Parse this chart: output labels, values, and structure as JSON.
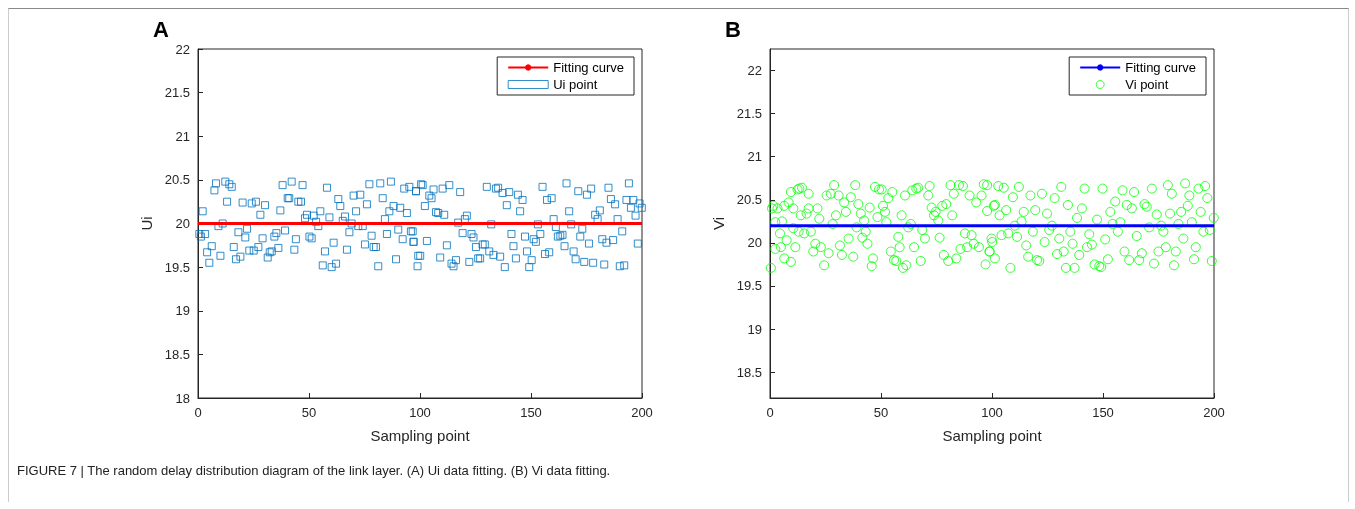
{
  "chart_data": [
    {
      "type": "scatter",
      "title": "A",
      "xlabel": "Sampling point",
      "ylabel": "Ui",
      "xlim": [
        0,
        200
      ],
      "xticks": [
        0,
        50,
        100,
        150,
        200
      ],
      "ylim": [
        18,
        22
      ],
      "yticks": [
        18,
        18.5,
        19,
        19.5,
        20,
        20.5,
        21,
        21.5,
        22
      ],
      "grid": false,
      "legend": "top right",
      "annotations": [
        "FIGURE 7 | The random delay distribution diagram of the link layer. (A) Ui data fitting. (B) Vi data fitting."
      ],
      "series": [
        {
          "type": "line",
          "name": "Fitting curve",
          "color": "#ff0000",
          "marker": "none",
          "x": [
            0,
            200
          ],
          "values": [
            20,
            20
          ]
        },
        {
          "name": "Ui point",
          "color": "#0072bd",
          "marker": "square",
          "x": [
            2.1,
            0.6,
            1.3,
            3.2,
            4.1,
            5.1,
            6.2,
            7.4,
            8.1,
            9.2,
            11.1,
            10.1,
            12.3,
            14.1,
            15.2,
            13.1,
            16.1,
            17.1,
            18.2,
            19.1,
            20.1,
            21.3,
            22.1,
            24.2,
            23.1,
            25.1,
            26.1,
            27.2,
            28.1,
            29.1,
            30.2,
            31.4,
            32.3,
            33.2,
            34.4,
            35.3,
            36.2,
            37.1,
            38.1,
            39.2,
            40.4,
            41.1,
            42.2,
            43.4,
            44.1,
            45.2,
            46.4,
            47.1,
            48.2,
            49.1,
            50.2,
            51.2,
            52.1,
            53.2,
            54.2,
            55.1,
            56.2,
            57.2,
            58.1,
            59.2,
            60.2,
            61.1,
            62.2,
            63.2,
            64.1,
            65.2,
            66.2,
            67.1,
            68.2,
            69.2,
            70.1,
            71.2,
            72.2,
            73.1,
            74.2,
            75.2,
            76.1,
            77.2,
            78.2,
            79.1,
            80.2,
            81.2,
            82.1,
            83.2,
            84.2,
            85.1,
            86.2,
            86.9,
            88.1,
            89.2,
            90.2,
            91.1,
            92.2,
            92.9,
            94.1,
            95.2,
            95.9,
            97.1,
            98.2,
            99.2,
            100.5,
            96.7,
            97.1,
            98.2,
            98.9,
            100.1,
            101.2,
            102.2,
            103.1,
            104.2,
            105.2,
            106.1,
            107.2,
            108.2,
            109.1,
            110.2,
            110.9,
            112.1,
            113.2,
            114.2,
            115.1,
            116.2,
            117.2,
            118.1,
            119.2,
            120.2,
            121.1,
            122.2,
            123.2,
            124.1,
            125.2,
            126.2,
            127.1,
            128.2,
            129.2,
            130.1,
            131.2,
            132.1,
            133.1,
            134.2,
            135.2,
            136.1,
            137.2,
            138.2,
            139.1,
            140.2,
            141.2,
            142.1,
            143.2,
            144.1,
            145.1,
            146.2,
            147.3,
            148.2,
            149.2,
            150.3,
            151.2,
            152.2,
            153.1,
            154.2,
            155.2,
            156.3,
            157.2,
            158.2,
            159.3,
            160.2,
            161.2,
            162.1,
            163.2,
            164.2,
            165.1,
            166.0,
            167.2,
            168.1,
            169.2,
            170.1,
            171.3,
            172.2,
            173.1,
            174.0,
            175.2,
            176.1,
            177.1,
            178.0,
            178.9,
            180.0,
            181.0,
            182.1,
            183.0,
            184.0,
            184.9,
            186.0,
            187.0,
            187.9,
            189.0,
            190.0,
            191.1,
            192.0,
            193.0,
            194.1,
            195.0,
            196.1,
            197.1,
            198.1,
            198.9,
            199.9
          ],
          "values": [
            20.14,
            19.88,
            19.85,
            19.88,
            19.67,
            19.55,
            19.74,
            20.38,
            20.46,
            19.97,
            20.0,
            19.63,
            20.48,
            20.45,
            20.42,
            20.25,
            19.73,
            19.59,
            19.9,
            19.62,
            20.24,
            19.84,
            19.94,
            20.23,
            19.69,
            19.69,
            20.25,
            19.73,
            20.1,
            19.83,
            20.21,
            19.61,
            19.67,
            19.68,
            19.85,
            19.89,
            19.72,
            20.15,
            20.44,
            19.92,
            20.29,
            20.29,
            20.48,
            19.7,
            19.82,
            20.25,
            20.25,
            20.44,
            20.06,
            20.1,
            19.85,
            19.83,
            20.09,
            20.02,
            19.97,
            20.14,
            19.52,
            19.68,
            20.41,
            20.07,
            19.5,
            19.78,
            19.54,
            20.28,
            20.2,
            20.03,
            20.08,
            19.7,
            19.9,
            20.0,
            20.32,
            20.14,
            19.97,
            20.33,
            19.97,
            19.76,
            20.22,
            20.45,
            19.86,
            19.73,
            19.73,
            19.51,
            20.46,
            20.29,
            20.05,
            19.88,
            20.14,
            20.48,
            20.2,
            19.59,
            19.93,
            20.18,
            19.82,
            20.4,
            20.12,
            20.42,
            19.91,
            19.79,
            20.37,
            19.63,
            20.45,
            19.91,
            19.79,
            20.37,
            19.51,
            19.63,
            20.44,
            20.2,
            19.8,
            20.32,
            20.29,
            20.39,
            20.13,
            20.12,
            19.61,
            20.4,
            20.1,
            19.75,
            20.44,
            19.54,
            19.51,
            19.58,
            20.01,
            20.36,
            19.89,
            20.05,
            20.09,
            19.56,
            19.88,
            19.84,
            19.73,
            19.6,
            19.6,
            19.76,
            19.76,
            20.42,
            19.68,
            19.99,
            19.64,
            20.4,
            20.41,
            19.62,
            20.35,
            19.5,
            20.21,
            20.36,
            19.88,
            19.74,
            19.6,
            20.33,
            20.14,
            20.27,
            19.85,
            19.68,
            19.5,
            19.58,
            19.82,
            19.79,
            19.99,
            19.88,
            20.42,
            19.65,
            20.27,
            19.67,
            20.29,
            20.05,
            19.96,
            19.85,
            19.86,
            19.87,
            19.74,
            20.46,
            20.14,
            19.99,
            19.68,
            19.59,
            20.37,
            19.85,
            19.94,
            19.56,
            20.33,
            19.77,
            20.4,
            19.55,
            20.1,
            20.05,
            20.15,
            19.82,
            19.53,
            19.78,
            20.41,
            20.28,
            19.81,
            20.22,
            20.05,
            19.51,
            19.91,
            19.52,
            20.27,
            20.46,
            20.18,
            20.27,
            20.09,
            19.77,
            20.23,
            20.18
          ]
        }
      ]
    },
    {
      "type": "scatter",
      "title": "B",
      "xlabel": "Sampling point",
      "ylabel": "Vi",
      "xlim": [
        0,
        200
      ],
      "xticks": [
        0,
        50,
        100,
        150,
        200
      ],
      "ylim": [
        18.2,
        22.25
      ],
      "yticks": [
        18.5,
        19,
        19.5,
        20,
        20.5,
        21,
        21.5,
        22
      ],
      "grid": false,
      "legend": "top right",
      "series": [
        {
          "type": "line",
          "name": "Fitting curve",
          "color": "#0000ff",
          "marker": "none",
          "x": [
            0,
            200
          ],
          "values": [
            20.2,
            20.2
          ]
        },
        {
          "name": "Vi point",
          "color": "#00ff00",
          "marker": "circle",
          "x": [
            0.4,
            0.9,
            1.5,
            2.4,
            3.4,
            4.5,
            5.4,
            6.4,
            7.5,
            8.4,
            9.4,
            10.5,
            2.4,
            4.9,
            6.4,
            9.4,
            11.4,
            12.4,
            13.2,
            14.4,
            17.4,
            10.5,
            12.9,
            13.9,
            15.4,
            16.5,
            17.4,
            18.4,
            19.5,
            20.4,
            21.4,
            22.2,
            22.9,
            24.4,
            25.5,
            26.4,
            27.4,
            28.2,
            28.9,
            29.7,
            30.9,
            31.5,
            32.4,
            33.4,
            34.2,
            35.4,
            36.4,
            37.5,
            38.4,
            39.0,
            39.8,
            40.9,
            41.6,
            42.4,
            43.1,
            43.9,
            44.9,
            45.8,
            46.4,
            47.3,
            48.4,
            49.1,
            50.3,
            50.9,
            51.8,
            52.4,
            53.3,
            54.4,
            55.1,
            55.9,
            56.9,
            57.8,
            58.4,
            59.3,
            59.9,
            60.8,
            61.4,
            62.3,
            63.4,
            64.1,
            64.9,
            65.9,
            66.8,
            67.9,
            68.6,
            69.8,
            71.3,
            71.9,
            72.8,
            73.9,
            74.6,
            75.8,
            76.4,
            77.6,
            78.3,
            79.4,
            80.3,
            81.3,
            82.1,
            82.8,
            83.9,
            85.1,
            85.8,
            86.9,
            87.8,
            88.8,
            89.9,
            90.8,
            91.8,
            92.9,
            94.1,
            95.3,
            96.3,
            97.1,
            97.8,
            98.9,
            99.8,
            100.8,
            101.3,
            97.8,
            98.9,
            100.1,
            101.3,
            102.8,
            103.4,
            104.3,
            105.3,
            106.4,
            107.3,
            108.3,
            109.4,
            110.3,
            111.3,
            112.1,
            113.3,
            114.3,
            115.4,
            116.3,
            117.3,
            118.4,
            119.5,
            120.3,
            121.3,
            122.5,
            123.7,
            124.8,
            125.8,
            127.0,
            128.2,
            129.3,
            130.3,
            131.2,
            132.3,
            133.3,
            134.2,
            135.3,
            136.3,
            137.2,
            138.3,
            139.3,
            140.5,
            141.7,
            142.8,
            143.8,
            145.0,
            146.2,
            147.3,
            148.3,
            149.2,
            149.8,
            151.0,
            152.2,
            153.3,
            154.3,
            155.5,
            156.7,
            157.8,
            158.8,
            159.7,
            160.7,
            161.8,
            163.0,
            164.0,
            165.2,
            166.3,
            167.5,
            168.7,
            169.7,
            170.8,
            172.0,
            173.0,
            174.2,
            175.0,
            176.2,
            177.2,
            178.3,
            179.2,
            180.2,
            181.0,
            182.0,
            182.8,
            184.0,
            185.2,
            186.2,
            187.0,
            188.2,
            188.9,
            190.0,
            191.0,
            191.8,
            193.0,
            194.0,
            195.2,
            196.0,
            197.0,
            198.1,
            199.0,
            199.9
          ],
          "values": [
            19.71,
            20.4,
            20.43,
            20.24,
            20.4,
            20.11,
            20.25,
            20.43,
            20.03,
            20.47,
            20.59,
            20.4,
            19.93,
            19.95,
            19.82,
            19.78,
            19.95,
            20.62,
            20.63,
            20.64,
            20.57,
            20.17,
            20.13,
            20.32,
            20.11,
            20.34,
            20.4,
            20.13,
            19.9,
            19.99,
            20.4,
            20.28,
            19.95,
            19.74,
            20.55,
            19.88,
            20.57,
            20.22,
            20.67,
            20.32,
            20.55,
            19.97,
            19.86,
            20.47,
            20.36,
            20.05,
            20.53,
            19.84,
            20.67,
            20.18,
            20.45,
            20.34,
            20.06,
            20.26,
            20.13,
            19.99,
            20.41,
            19.73,
            19.82,
            20.65,
            20.3,
            20.62,
            20.62,
            20.43,
            20.36,
            20.24,
            20.52,
            19.9,
            20.59,
            19.8,
            19.79,
            20.07,
            19.95,
            20.32,
            19.71,
            20.55,
            19.74,
            20.18,
            20.22,
            20.61,
            19.95,
            20.63,
            20.64,
            19.79,
            20.15,
            20.05,
            20.55,
            20.66,
            20.41,
            20.32,
            20.36,
            20.26,
            20.06,
            20.43,
            19.86,
            20.45,
            19.79,
            20.67,
            20.32,
            20.57,
            19.82,
            20.67,
            19.93,
            20.66,
            20.11,
            19.95,
            20.55,
            20.09,
            19.99,
            20.47,
            19.95,
            20.55,
            20.68,
            19.75,
            20.37,
            19.9,
            20.05,
            20.43,
            19.82,
            20.67,
            19.9,
            20.01,
            20.44,
            20.66,
            20.32,
            20.09,
            20.64,
            20.38,
            20.11,
            19.71,
            20.53,
            20.2,
            20.07,
            20.65,
            20.25,
            20.36,
            19.97,
            19.84,
            20.55,
            20.13,
            20.38,
            19.8,
            19.79,
            20.57,
            20.01,
            20.34,
            20.15,
            20.2,
            20.52,
            19.87,
            20.05,
            20.65,
            19.9,
            19.71,
            20.44,
            20.13,
            19.99,
            19.71,
            20.29,
            19.86,
            20.4,
            20.63,
            19.95,
            20.1,
            19.98,
            19.75,
            20.27,
            19.73,
            19.72,
            20.63,
            20.04,
            19.81,
            20.36,
            20.22,
            20.48,
            20.13,
            20.24,
            20.61,
            19.9,
            20.44,
            19.8,
            20.4,
            20.59,
            20.08,
            19.8,
            19.88,
            20.45,
            20.42,
            20.18,
            20.63,
            19.76,
            20.33,
            19.9,
            20.2,
            20.13,
            19.95,
            20.67,
            20.34,
            20.57,
            19.74,
            19.9,
            20.22,
            20.36,
            20.05,
            20.69,
            20.43,
            20.55,
            20.24,
            19.81,
            19.95,
            20.63,
            20.36,
            20.13,
            20.66,
            20.52,
            20.15,
            19.79,
            20.29
          ]
        }
      ]
    }
  ]
}
